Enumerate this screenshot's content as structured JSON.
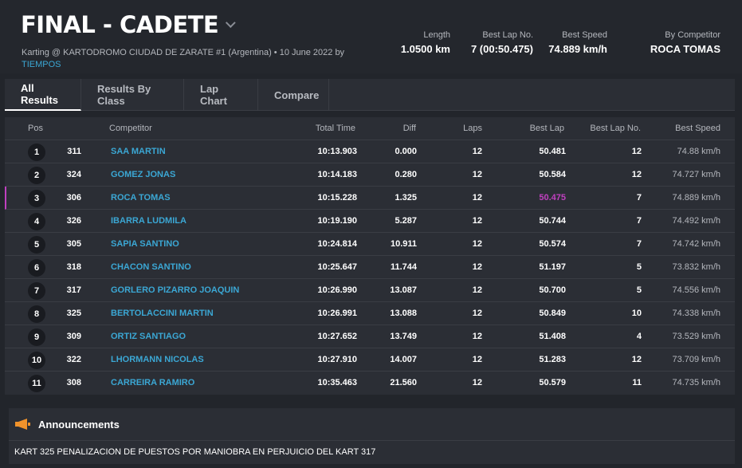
{
  "event": {
    "title": "FINAL - CADETE",
    "subtitle": "Karting @ KARTODROMO CIUDAD DE ZARATE #1 (Argentina) • 10 June 2022 by",
    "organizer": "TIEMPOS"
  },
  "stats": {
    "length_label": "Length",
    "length_value": "1.0500 km",
    "best_lap_no_label": "Best Lap No.",
    "best_lap_no_value": "7 (00:50.475)",
    "best_speed_label": "Best Speed",
    "best_speed_value": "74.889 km/h",
    "by_competitor_label": "By Competitor",
    "by_competitor_value": "ROCA TOMAS"
  },
  "tabs": [
    {
      "label": "All Results"
    },
    {
      "label": "Results By Class"
    },
    {
      "label": "Lap Chart"
    },
    {
      "label": "Compare"
    }
  ],
  "table": {
    "headers": {
      "pos": "Pos",
      "competitor": "Competitor",
      "total_time": "Total Time",
      "diff": "Diff",
      "laps": "Laps",
      "best_lap": "Best Lap",
      "best_lap_no": "Best Lap No.",
      "best_speed": "Best Speed"
    },
    "rows": [
      {
        "pos": "1",
        "num": "311",
        "name": "SAA MARTIN",
        "total": "10:13.903",
        "diff": "0.000",
        "laps": "12",
        "best": "50.481",
        "bln": "12",
        "speed": "74.88 km/h"
      },
      {
        "pos": "2",
        "num": "324",
        "name": "GOMEZ JONAS",
        "total": "10:14.183",
        "diff": "0.280",
        "laps": "12",
        "best": "50.584",
        "bln": "12",
        "speed": "74.727 km/h"
      },
      {
        "pos": "3",
        "num": "306",
        "name": "ROCA TOMAS",
        "total": "10:15.228",
        "diff": "1.325",
        "laps": "12",
        "best": "50.475",
        "bln": "7",
        "speed": "74.889 km/h"
      },
      {
        "pos": "4",
        "num": "326",
        "name": "IBARRA LUDMILA",
        "total": "10:19.190",
        "diff": "5.287",
        "laps": "12",
        "best": "50.744",
        "bln": "7",
        "speed": "74.492 km/h"
      },
      {
        "pos": "5",
        "num": "305",
        "name": "SAPIA SANTINO",
        "total": "10:24.814",
        "diff": "10.911",
        "laps": "12",
        "best": "50.574",
        "bln": "7",
        "speed": "74.742 km/h"
      },
      {
        "pos": "6",
        "num": "318",
        "name": "CHACON SANTINO",
        "total": "10:25.647",
        "diff": "11.744",
        "laps": "12",
        "best": "51.197",
        "bln": "5",
        "speed": "73.832 km/h"
      },
      {
        "pos": "7",
        "num": "317",
        "name": "GORLERO PIZARRO JOAQUIN",
        "total": "10:26.990",
        "diff": "13.087",
        "laps": "12",
        "best": "50.700",
        "bln": "5",
        "speed": "74.556 km/h"
      },
      {
        "pos": "8",
        "num": "325",
        "name": "BERTOLACCINI MARTIN",
        "total": "10:26.991",
        "diff": "13.088",
        "laps": "12",
        "best": "50.849",
        "bln": "10",
        "speed": "74.338 km/h"
      },
      {
        "pos": "9",
        "num": "309",
        "name": "ORTIZ SANTIAGO",
        "total": "10:27.652",
        "diff": "13.749",
        "laps": "12",
        "best": "51.408",
        "bln": "4",
        "speed": "73.529 km/h"
      },
      {
        "pos": "10",
        "num": "322",
        "name": "LHORMANN NICOLAS",
        "total": "10:27.910",
        "diff": "14.007",
        "laps": "12",
        "best": "51.283",
        "bln": "12",
        "speed": "73.709 km/h"
      },
      {
        "pos": "11",
        "num": "308",
        "name": "CARREIRA RAMIRO",
        "total": "10:35.463",
        "diff": "21.560",
        "laps": "12",
        "best": "50.579",
        "bln": "11",
        "speed": "74.735 km/h"
      }
    ]
  },
  "announcements": {
    "title": "Announcements",
    "icon": "megaphone-icon",
    "text": "KART 325 PENALIZACION DE PUESTOS POR MANIOBRA EN PERJUICIO DEL KART 317"
  },
  "colors": {
    "accent_link": "#3ba7d4",
    "best_lap_highlight": "#c040c0",
    "megaphone": "#f0922b"
  }
}
